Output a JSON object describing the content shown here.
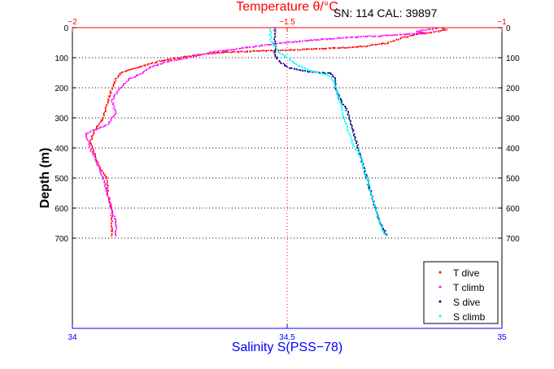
{
  "chart_data": {
    "type": "scatter",
    "title": "Temperature θ/°C",
    "annotation": "SN: 114  CAL: 39897",
    "xlabel": "Salinity S(PSS−78)",
    "ylabel": "Depth (m)",
    "temp_axis": {
      "range": [
        -2,
        -1
      ],
      "ticks": [
        -2,
        -1.5,
        -1
      ],
      "tick_labels": [
        "−2",
        "−1.5",
        "−1"
      ],
      "color": "#ff0000"
    },
    "salinity_axis": {
      "range": [
        34,
        35
      ],
      "ticks": [
        34,
        34.5,
        35
      ],
      "tick_labels": [
        "34",
        "34.5",
        "35"
      ],
      "color": "#0000ff"
    },
    "depth_axis": {
      "range": [
        0,
        1000
      ],
      "inverted": true,
      "ticks": [
        0,
        100,
        200,
        300,
        400,
        500,
        600,
        700
      ],
      "tick_labels": [
        "0",
        "100",
        "200",
        "300",
        "400",
        "500",
        "600",
        "700"
      ]
    },
    "grid": {
      "horizontal_dotted": [
        100,
        200,
        300,
        400,
        500,
        600,
        700
      ],
      "vertical_center_dotted": true
    },
    "legend_placement": "bottom-right",
    "series": [
      {
        "name": "T dive",
        "axis": "temperature",
        "color": "#ff0000",
        "points": [
          [
            -1.14,
            0
          ],
          [
            -1.13,
            5
          ],
          [
            -1.15,
            10
          ],
          [
            -1.17,
            15
          ],
          [
            -1.2,
            20
          ],
          [
            -1.23,
            30
          ],
          [
            -1.25,
            40
          ],
          [
            -1.27,
            50
          ],
          [
            -1.32,
            60
          ],
          [
            -1.38,
            65
          ],
          [
            -1.45,
            70
          ],
          [
            -1.55,
            75
          ],
          [
            -1.65,
            80
          ],
          [
            -1.72,
            90
          ],
          [
            -1.8,
            110
          ],
          [
            -1.85,
            130
          ],
          [
            -1.89,
            150
          ],
          [
            -1.9,
            170
          ],
          [
            -1.91,
            200
          ],
          [
            -1.92,
            250
          ],
          [
            -1.93,
            300
          ],
          [
            -1.95,
            340
          ],
          [
            -1.96,
            380
          ],
          [
            -1.95,
            420
          ],
          [
            -1.94,
            460
          ],
          [
            -1.92,
            500
          ],
          [
            -1.92,
            550
          ],
          [
            -1.91,
            600
          ],
          [
            -1.91,
            650
          ],
          [
            -1.91,
            690
          ]
        ]
      },
      {
        "name": "T climb",
        "axis": "temperature",
        "color": "#ff00ff",
        "points": [
          [
            -1.15,
            0
          ],
          [
            -1.2,
            10
          ],
          [
            -1.18,
            15
          ],
          [
            -1.28,
            25
          ],
          [
            -1.35,
            30
          ],
          [
            -1.45,
            40
          ],
          [
            -1.52,
            50
          ],
          [
            -1.6,
            65
          ],
          [
            -1.68,
            80
          ],
          [
            -1.72,
            95
          ],
          [
            -1.78,
            110
          ],
          [
            -1.82,
            130
          ],
          [
            -1.84,
            150
          ],
          [
            -1.87,
            170
          ],
          [
            -1.89,
            200
          ],
          [
            -1.91,
            240
          ],
          [
            -1.9,
            280
          ],
          [
            -1.92,
            320
          ],
          [
            -1.97,
            350
          ],
          [
            -1.96,
            400
          ],
          [
            -1.95,
            430
          ],
          [
            -1.94,
            460
          ],
          [
            -1.93,
            500
          ],
          [
            -1.92,
            550
          ],
          [
            -1.91,
            600
          ],
          [
            -1.9,
            650
          ],
          [
            -1.9,
            690
          ]
        ]
      },
      {
        "name": "S dive",
        "axis": "salinity",
        "color": "#000080",
        "points": [
          [
            34.47,
            0
          ],
          [
            34.47,
            50
          ],
          [
            34.47,
            90
          ],
          [
            34.48,
            110
          ],
          [
            34.5,
            130
          ],
          [
            34.55,
            145
          ],
          [
            34.6,
            150
          ],
          [
            34.61,
            165
          ],
          [
            34.61,
            190
          ],
          [
            34.62,
            230
          ],
          [
            34.64,
            280
          ],
          [
            34.65,
            330
          ],
          [
            34.66,
            380
          ],
          [
            34.67,
            430
          ],
          [
            34.68,
            480
          ],
          [
            34.69,
            530
          ],
          [
            34.7,
            580
          ],
          [
            34.71,
            630
          ],
          [
            34.72,
            660
          ],
          [
            34.73,
            690
          ]
        ]
      },
      {
        "name": "S climb",
        "axis": "salinity",
        "color": "#00ffff",
        "points": [
          [
            34.46,
            0
          ],
          [
            34.46,
            40
          ],
          [
            34.47,
            60
          ],
          [
            34.48,
            80
          ],
          [
            34.5,
            100
          ],
          [
            34.52,
            120
          ],
          [
            34.55,
            140
          ],
          [
            34.58,
            150
          ],
          [
            34.6,
            160
          ],
          [
            34.61,
            190
          ],
          [
            34.62,
            240
          ],
          [
            34.63,
            290
          ],
          [
            34.64,
            340
          ],
          [
            34.65,
            380
          ],
          [
            34.67,
            430
          ],
          [
            34.68,
            480
          ],
          [
            34.69,
            530
          ],
          [
            34.7,
            580
          ],
          [
            34.71,
            630
          ],
          [
            34.72,
            670
          ],
          [
            34.73,
            690
          ]
        ]
      }
    ]
  }
}
